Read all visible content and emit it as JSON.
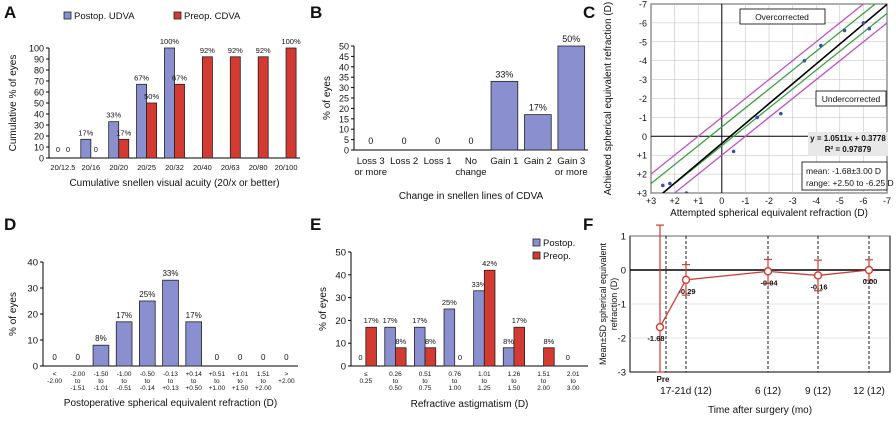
{
  "chart_data": [
    {
      "panel": "A",
      "type": "bar",
      "xlabel": "Cumulative snellen visual acuity (20/x or better)",
      "ylabel": "Cumulative % of eyes",
      "ylim": [
        0,
        100
      ],
      "yticks": [
        0,
        10,
        20,
        30,
        40,
        50,
        60,
        70,
        80,
        90,
        100
      ],
      "legend_position": "top-left",
      "categories": [
        "20/12.5",
        "20/16",
        "20/20",
        "20/25",
        "20/32",
        "20/40",
        "20/63",
        "20/80",
        "20/100"
      ],
      "series": [
        {
          "name": "Postop. UDVA",
          "color": "#8a8fd0",
          "values": [
            0,
            17,
            33,
            67,
            100,
            null,
            null,
            null,
            null
          ],
          "labels": [
            "0",
            "17%",
            "33%",
            "67%",
            "100%",
            "",
            "",
            "",
            ""
          ]
        },
        {
          "name": "Preop. CDVA",
          "color": "#d23a32",
          "values": [
            0,
            0,
            17,
            50,
            67,
            92,
            92,
            92,
            100
          ],
          "labels": [
            "0",
            "0",
            "17%",
            "50%",
            "67%",
            "92%",
            "92%",
            "92%",
            "100%"
          ]
        }
      ]
    },
    {
      "panel": "B",
      "type": "bar",
      "xlabel": "Change in snellen lines of CDVA",
      "ylabel": "% of eyes",
      "ylim": [
        0,
        50
      ],
      "yticks": [
        0,
        5,
        10,
        15,
        20,
        25,
        30,
        35,
        40,
        45,
        50
      ],
      "categories": [
        [
          "Loss 3",
          "or more"
        ],
        [
          "Loss 2"
        ],
        [
          "Loss 1"
        ],
        [
          "No",
          "change"
        ],
        [
          "Gain 1"
        ],
        [
          "Gain 2"
        ],
        [
          "Gain 3",
          "or more"
        ]
      ],
      "series": [
        {
          "color": "#8a8fd0",
          "values": [
            0,
            0,
            0,
            0,
            33,
            17,
            50
          ],
          "labels": [
            "0",
            "0",
            "0",
            "0",
            "33%",
            "17%",
            "50%"
          ]
        }
      ]
    },
    {
      "panel": "C",
      "type": "scatter",
      "xlabel": "Attempted spherical equivalent refraction (D)",
      "ylabel": "Achieved spherical equivalent refraction (D)",
      "xticks": [
        "+3",
        "+2",
        "+1",
        "0",
        "-1",
        "-2",
        "-3",
        "-4",
        "-5",
        "-6",
        "-7"
      ],
      "yticks": [
        "-7",
        "-6",
        "-5",
        "-4",
        "-3",
        "-2",
        "-1",
        "0",
        "+1",
        "+2",
        "+3"
      ],
      "xlim": [
        3,
        -7
      ],
      "ylim": [
        3,
        -7
      ],
      "grid": true,
      "points": [
        {
          "x": 2.5,
          "y": 2.6
        },
        {
          "x": 2.2,
          "y": 2.5
        },
        {
          "x": 1.5,
          "y": 3.0
        },
        {
          "x": -0.5,
          "y": 0.8
        },
        {
          "x": -1.5,
          "y": -1.0
        },
        {
          "x": -2.5,
          "y": -1.2
        },
        {
          "x": -3.5,
          "y": -4.0
        },
        {
          "x": -4.2,
          "y": -4.8
        },
        {
          "x": -5.2,
          "y": -5.6
        },
        {
          "x": -6.0,
          "y": -6.0
        },
        {
          "x": -6.25,
          "y": -5.7
        }
      ],
      "annotations": {
        "overcorrected": "Overcorrected",
        "undercorrected": "Undercorrected",
        "equation": "y = 1.0511x + 0.3778",
        "r2": "R² = 0.97879",
        "mean": "mean: -1.68±3.00 D",
        "range": "range: +2.50 to -6.25 D"
      }
    },
    {
      "panel": "D",
      "type": "bar",
      "xlabel": "Postoperative spherical equivalent refraction (D)",
      "ylabel": "% of eyes",
      "ylim": [
        0,
        40
      ],
      "yticks": [
        0,
        10,
        20,
        30,
        40
      ],
      "categories": [
        [
          "<",
          "-2.00"
        ],
        [
          "-2.00",
          "to",
          "-1.51"
        ],
        [
          "-1.50",
          "to",
          "-1.01"
        ],
        [
          "-1.00",
          "to",
          "-0.51"
        ],
        [
          "-0.50",
          "to",
          "-0.14"
        ],
        [
          "-0.13",
          "to",
          "+0.13"
        ],
        [
          "+0.14",
          "to",
          "+0.50"
        ],
        [
          "+0.51",
          "to",
          "+1.00"
        ],
        [
          "+1.01",
          "to",
          "+1.50"
        ],
        [
          "1.51",
          "to",
          "+2.00"
        ],
        [
          ">",
          "+2.00"
        ]
      ],
      "series": [
        {
          "color": "#8a8fd0",
          "values": [
            0,
            0,
            8,
            17,
            25,
            33,
            17,
            0,
            0,
            0,
            0
          ],
          "labels": [
            "0",
            "0",
            "8%",
            "17%",
            "25%",
            "33%",
            "17%",
            "0",
            "0",
            "0",
            "0"
          ]
        }
      ]
    },
    {
      "panel": "E",
      "type": "bar",
      "xlabel": "Refractive astigmatism (D)",
      "ylabel": "% of eyes",
      "ylim": [
        0,
        50
      ],
      "yticks": [
        0,
        10,
        20,
        30,
        40,
        50
      ],
      "legend_position": "top-right",
      "categories": [
        [
          "≤",
          "0.25"
        ],
        [
          "0.26",
          "to",
          "0.50"
        ],
        [
          "0.51",
          "to",
          "0.75"
        ],
        [
          "0.76",
          "to",
          "1.00"
        ],
        [
          "1.01",
          "to",
          "1.25"
        ],
        [
          "1.26",
          "to",
          "1.50"
        ],
        [
          "1.51",
          "to",
          "2.00"
        ],
        [
          "2.01",
          "to",
          "3.00"
        ]
      ],
      "series": [
        {
          "name": "Postop.",
          "color": "#8a8fd0",
          "values": [
            0,
            17,
            17,
            25,
            33,
            8,
            0,
            0
          ],
          "labels": [
            "0",
            "17%",
            "17%",
            "25%",
            "33%",
            "8%",
            "",
            "0"
          ]
        },
        {
          "name": "Preop.",
          "color": "#d23a32",
          "values": [
            17,
            8,
            8,
            0,
            42,
            17,
            8,
            0
          ],
          "labels": [
            "17%",
            "8%",
            "8%",
            "0",
            "42%",
            "17%",
            "8%",
            ""
          ]
        }
      ]
    },
    {
      "panel": "F",
      "type": "line",
      "xlabel": "Time after surgery (mo)",
      "ylabel": [
        "Mean±SD spherical equivalent",
        "refraction (D)"
      ],
      "ylim": [
        -3,
        1
      ],
      "yticks": [
        "1",
        "0",
        "-1",
        "-2",
        "-3"
      ],
      "categories": [
        "Pre",
        "17-21d (12)",
        "6 (12)",
        "9 (12)",
        "12 (12)"
      ],
      "color": "#d23a32",
      "points": [
        {
          "label": "Pre",
          "mean": -1.68,
          "sd": 3.0,
          "text": "-1.68"
        },
        {
          "label": "17-21d (12)",
          "mean": -0.29,
          "sd": 0.45,
          "text": "-0.29"
        },
        {
          "label": "6 (12)",
          "mean": -0.04,
          "sd": 0.35,
          "text": "-0.04"
        },
        {
          "label": "9 (12)",
          "mean": -0.16,
          "sd": 0.45,
          "text": "-0.16"
        },
        {
          "label": "12 (12)",
          "mean": 0.0,
          "sd": 0.3,
          "text": "0.00"
        }
      ]
    }
  ]
}
